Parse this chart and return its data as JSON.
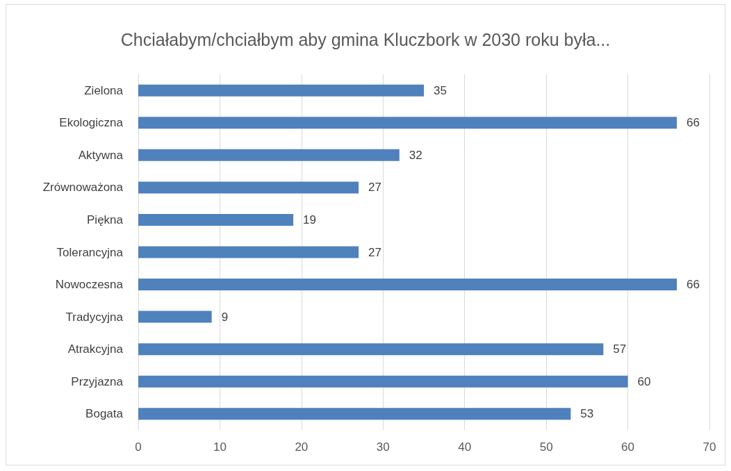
{
  "chart_data": {
    "type": "bar",
    "orientation": "horizontal",
    "title": "Chciałabym/chciałbym aby gmina Kluczbork w 2030 roku była...",
    "categories": [
      "Zielona",
      "Ekologiczna",
      "Aktywna",
      "Zrównoważona",
      "Piękna",
      "Tolerancyjna",
      "Nowoczesna",
      "Tradycyjna",
      "Atrakcyjna",
      "Przyjazna",
      "Bogata"
    ],
    "values": [
      35,
      66,
      32,
      27,
      19,
      27,
      66,
      9,
      57,
      60,
      53
    ],
    "color": "#4f81bd",
    "xlim": [
      0,
      70
    ],
    "xticks": [
      0,
      10,
      20,
      30,
      40,
      50,
      60,
      70
    ],
    "grid": "x",
    "data_labels": true
  }
}
